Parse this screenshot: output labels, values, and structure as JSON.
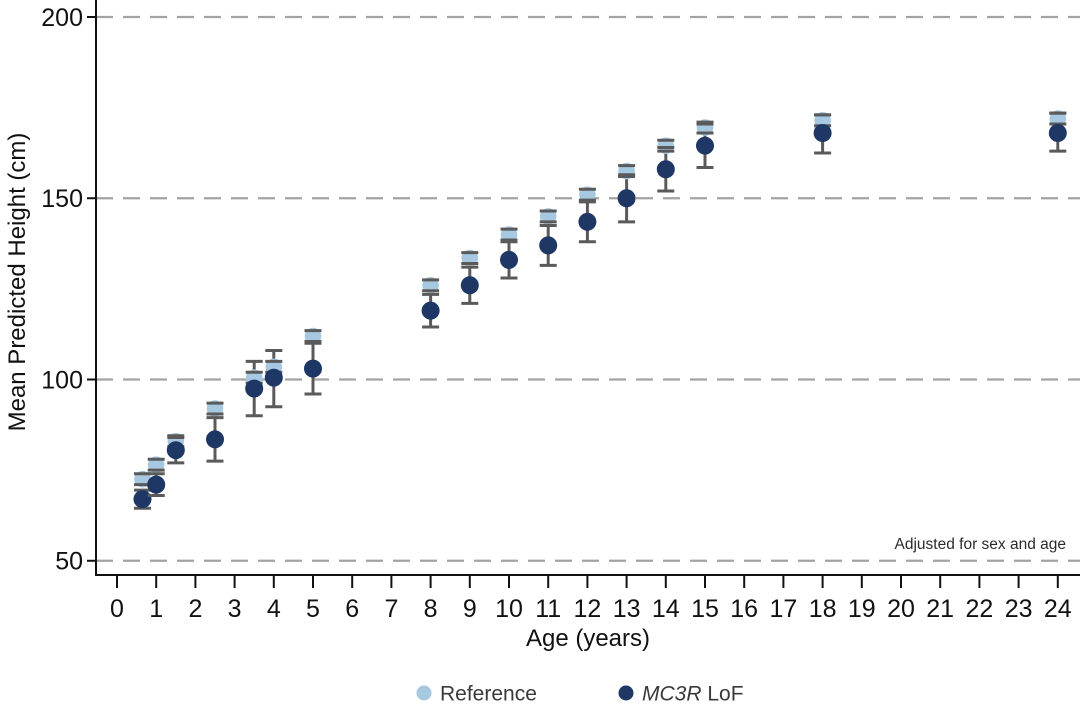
{
  "chart_data": {
    "type": "scatter",
    "title": "",
    "xlabel": "Age (years)",
    "ylabel": "Mean Predicted Height (cm)",
    "annotation": "Adjusted for sex and age",
    "x_ticks": [
      0,
      1,
      2,
      3,
      4,
      5,
      6,
      7,
      8,
      9,
      10,
      11,
      12,
      13,
      14,
      15,
      16,
      17,
      18,
      19,
      20,
      21,
      22,
      23,
      24
    ],
    "y_ticks": [
      50,
      100,
      150,
      200
    ],
    "xlim": [
      -0.55,
      24.6
    ],
    "ylim": [
      43,
      204.7
    ],
    "grid": "horizontal dashed gridlines at each y tick",
    "legend_position": "bottom-center",
    "errorbar_color": "#5A5A5A",
    "gridline_color": "#A3A3A3",
    "x": [
      0.65,
      1,
      1.5,
      2.5,
      3.5,
      4,
      5,
      8,
      9,
      10,
      11,
      12,
      13,
      14,
      15,
      18,
      24
    ],
    "series": [
      {
        "name": "Reference",
        "label_parts": [
          {
            "text": "Reference",
            "italic": false
          }
        ],
        "color": "#A6C8E1",
        "values": [
          72.5,
          76.5,
          83,
          92,
          100.5,
          103.5,
          112,
          126,
          133.5,
          140,
          145,
          151,
          157.5,
          164.5,
          169.5,
          171.5,
          172
        ],
        "ci_low": [
          71,
          75,
          81.5,
          90.5,
          99,
          102,
          110.5,
          124.5,
          132,
          138.5,
          143.5,
          149.5,
          156,
          163,
          168,
          170,
          170.5
        ],
        "ci_high": [
          74,
          78,
          84.5,
          93.5,
          102,
          105,
          113.5,
          127.5,
          135,
          141.5,
          146.5,
          152.5,
          159,
          166,
          171,
          173,
          173.5
        ]
      },
      {
        "name": "MC3R LoF",
        "label_parts": [
          {
            "text": "MC3R",
            "italic": true
          },
          {
            "text": " LoF",
            "italic": false
          }
        ],
        "color": "#1F3764",
        "values": [
          67,
          71,
          80.5,
          83.5,
          97.5,
          100.5,
          103,
          119,
          126,
          133,
          137,
          143.5,
          150,
          158,
          164.5,
          168,
          168
        ],
        "ci_low": [
          64.5,
          68,
          77,
          77.5,
          90,
          92.5,
          96,
          114.5,
          121,
          128,
          131.5,
          138,
          143.5,
          152,
          158.5,
          162.5,
          163
        ],
        "ci_high": [
          69.5,
          74,
          84,
          89.5,
          105,
          108,
          110,
          123.5,
          131,
          138,
          142.5,
          149,
          156.5,
          164,
          170.5,
          173,
          173.5
        ]
      }
    ]
  }
}
